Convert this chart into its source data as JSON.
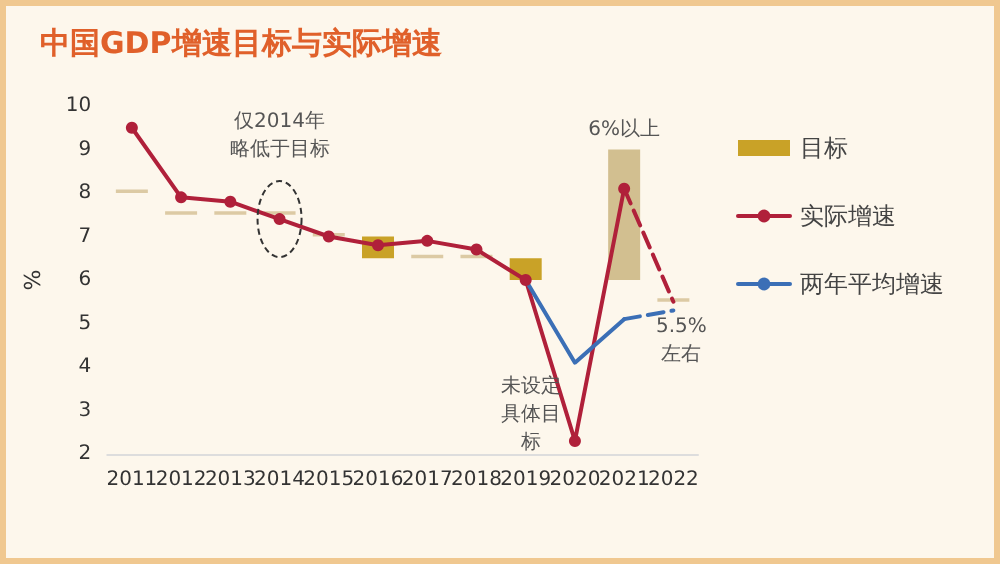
{
  "chart_data": {
    "type": "line",
    "title": "中国GDP增速目标与实际增速",
    "ylabel": "%",
    "categories": [
      "2011",
      "2012",
      "2013",
      "2014",
      "2015",
      "2016",
      "2017",
      "2018",
      "2019",
      "2020",
      "2021",
      "2022"
    ],
    "ylim": [
      2,
      10
    ],
    "yticks": [
      2,
      3,
      4,
      5,
      6,
      7,
      8,
      9,
      10
    ],
    "grid": false,
    "legend": "right",
    "series": [
      {
        "name": "目标",
        "type": "bar",
        "color": "#c9a227",
        "colors": [
          "#dccaa4",
          "#dccaa4",
          "#dccaa4",
          "#dccaa4",
          "#dccaa4",
          "#c9a227",
          "#dccaa4",
          "#dccaa4",
          "#c9a227",
          null,
          "#d2bf90",
          "#dccaa4"
        ],
        "base": [
          8,
          7.5,
          7.5,
          7.5,
          7,
          6.5,
          6.5,
          6.5,
          6,
          null,
          6,
          5.5
        ],
        "values": [
          0.08,
          0.08,
          0.08,
          0.08,
          0.08,
          0.5,
          0.08,
          0.08,
          0.5,
          null,
          3,
          0.08
        ]
      },
      {
        "name": "实际增速",
        "color": "#b0203a",
        "marker": "circle",
        "line_style": "solid",
        "values": [
          9.5,
          7.9,
          7.8,
          7.4,
          7.0,
          6.8,
          6.9,
          6.7,
          6.0,
          2.3,
          8.1,
          null
        ]
      },
      {
        "color": "#b0203a",
        "marker": "none",
        "line_style": "dashed",
        "values": [
          null,
          null,
          null,
          null,
          null,
          null,
          null,
          null,
          null,
          null,
          8.1,
          5.5
        ]
      },
      {
        "name": "两年平均增速",
        "color": "#3b6fb6",
        "marker": "none",
        "line_style": "solid",
        "values": [
          null,
          null,
          null,
          null,
          null,
          null,
          null,
          null,
          6.0,
          4.1,
          5.1,
          null
        ]
      },
      {
        "color": "#3b6fb6",
        "marker": "none",
        "line_style": "dashed",
        "values": [
          null,
          null,
          null,
          null,
          null,
          null,
          null,
          null,
          null,
          null,
          5.1,
          5.3
        ]
      }
    ],
    "annotations": [
      "仅2014年略低于目标",
      "6%以上",
      "5.5%左右",
      "未设定具体目标"
    ]
  }
}
